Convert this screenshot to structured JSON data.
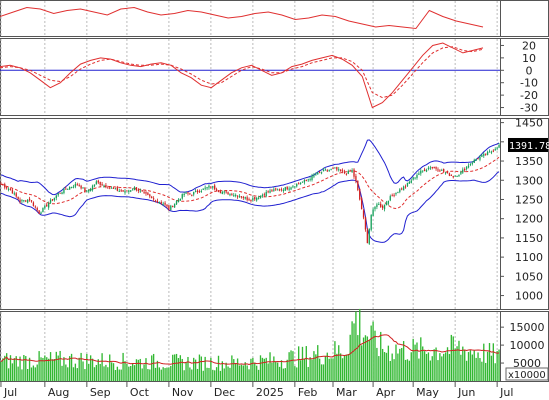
{
  "chart_data": {
    "type": "candlestick",
    "x_axis": {
      "month_labels": [
        "Jul",
        "Aug",
        "Sep",
        "Oct",
        "Nov",
        "Dec",
        "2025",
        "Feb",
        "Mar",
        "Apr",
        "May",
        "Jun",
        "Jul"
      ],
      "month_positions": [
        0,
        23,
        45,
        66,
        88,
        110,
        132,
        154,
        174,
        195,
        216,
        238,
        260
      ],
      "total_sessions": 262
    },
    "panels": [
      {
        "id": "oscillator_top",
        "series": [
          {
            "style": "line",
            "color": "#e03030",
            "values": [
              0.55,
              0.7,
              0.85,
              0.8,
              0.65,
              0.75,
              0.8,
              0.7,
              0.6,
              0.8,
              0.85,
              0.7,
              0.6,
              0.65,
              0.75,
              0.7,
              0.6,
              0.5,
              0.55,
              0.65,
              0.7,
              0.6,
              0.45,
              0.5,
              0.6,
              0.55,
              0.4,
              0.3,
              0.2,
              0.25,
              0.2,
              0.15,
              0.75,
              0.55,
              0.4,
              0.3,
              0.2
            ]
          }
        ]
      },
      {
        "id": "macd",
        "y_ticks": [
          20,
          10,
          0,
          -10,
          -20,
          -30
        ],
        "ylim": [
          -36,
          26
        ],
        "zero_line_color": "#2020d0",
        "series": [
          {
            "name": "macd",
            "style": "line",
            "color": "#e03030",
            "values": [
              3,
              4,
              2,
              -2,
              -8,
              -14,
              -10,
              -2,
              5,
              8,
              10,
              9,
              6,
              4,
              3,
              5,
              6,
              4,
              -2,
              -6,
              -12,
              -14,
              -8,
              -2,
              2,
              4,
              0,
              -4,
              -2,
              3,
              5,
              8,
              10,
              12,
              9,
              4,
              -5,
              -30,
              -26,
              -18,
              -8,
              2,
              12,
              20,
              22,
              18,
              14,
              16,
              18
            ]
          },
          {
            "name": "signal",
            "style": "dashed",
            "color": "#e03030",
            "values": [
              2,
              3,
              2,
              0,
              -4,
              -8,
              -9,
              -5,
              1,
              5,
              8,
              9,
              7,
              5,
              4,
              4,
              5,
              4,
              1,
              -3,
              -8,
              -11,
              -10,
              -5,
              0,
              3,
              1,
              -2,
              -2,
              1,
              3,
              6,
              8,
              10,
              10,
              7,
              0,
              -18,
              -22,
              -20,
              -12,
              -3,
              6,
              14,
              18,
              19,
              16,
              15,
              17
            ]
          }
        ]
      },
      {
        "id": "price",
        "y_ticks": [
          1450,
          1400,
          1350,
          1300,
          1250,
          1200,
          1150,
          1100,
          1050,
          1000
        ],
        "ylim": [
          965,
          1462
        ],
        "last_price_label": "1391.780",
        "last_price": 1391.78,
        "close_keypoints": [
          [
            0,
            1290
          ],
          [
            5,
            1275
          ],
          [
            10,
            1245
          ],
          [
            15,
            1250
          ],
          [
            20,
            1215
          ],
          [
            25,
            1240
          ],
          [
            30,
            1265
          ],
          [
            35,
            1280
          ],
          [
            40,
            1290
          ],
          [
            45,
            1270
          ],
          [
            50,
            1295
          ],
          [
            55,
            1285
          ],
          [
            60,
            1275
          ],
          [
            65,
            1270
          ],
          [
            70,
            1280
          ],
          [
            75,
            1265
          ],
          [
            80,
            1250
          ],
          [
            85,
            1240
          ],
          [
            88,
            1225
          ],
          [
            92,
            1245
          ],
          [
            96,
            1265
          ],
          [
            100,
            1265
          ],
          [
            105,
            1275
          ],
          [
            110,
            1285
          ],
          [
            115,
            1270
          ],
          [
            120,
            1265
          ],
          [
            125,
            1260
          ],
          [
            130,
            1250
          ],
          [
            134,
            1255
          ],
          [
            140,
            1270
          ],
          [
            145,
            1275
          ],
          [
            150,
            1280
          ],
          [
            155,
            1290
          ],
          [
            160,
            1300
          ],
          [
            165,
            1315
          ],
          [
            170,
            1325
          ],
          [
            175,
            1330
          ],
          [
            178,
            1322
          ],
          [
            181,
            1318
          ],
          [
            184,
            1325
          ],
          [
            186,
            1295
          ],
          [
            188,
            1250
          ],
          [
            190,
            1200
          ],
          [
            192,
            1140
          ],
          [
            194,
            1210
          ],
          [
            197,
            1240
          ],
          [
            200,
            1230
          ],
          [
            203,
            1250
          ],
          [
            206,
            1265
          ],
          [
            209,
            1275
          ],
          [
            212,
            1285
          ],
          [
            215,
            1300
          ],
          [
            218,
            1315
          ],
          [
            221,
            1325
          ],
          [
            225,
            1335
          ],
          [
            229,
            1330
          ],
          [
            233,
            1320
          ],
          [
            237,
            1310
          ],
          [
            241,
            1320
          ],
          [
            245,
            1340
          ],
          [
            249,
            1355
          ],
          [
            253,
            1365
          ],
          [
            257,
            1375
          ],
          [
            261,
            1392
          ]
        ],
        "overlays": [
          {
            "name": "bollinger_bands",
            "color": "#2020d0"
          },
          {
            "name": "moving_average",
            "color": "#e03030",
            "style": "dashed"
          }
        ],
        "candle_colors": {
          "up": "#16a05a",
          "down": "#d02020"
        }
      },
      {
        "id": "volume",
        "y_ticks": [
          15000,
          10000,
          5000
        ],
        "ylim": [
          0,
          19500
        ],
        "unit_label": "x10000",
        "bar_color": "#32b832",
        "ma_color": "#d02020",
        "volume_keypoints": [
          [
            0,
            5600
          ],
          [
            20,
            5800
          ],
          [
            40,
            5900
          ],
          [
            60,
            5500
          ],
          [
            80,
            5300
          ],
          [
            100,
            5200
          ],
          [
            120,
            5100
          ],
          [
            140,
            5600
          ],
          [
            160,
            7000
          ],
          [
            180,
            8500
          ],
          [
            186,
            17500
          ],
          [
            190,
            14000
          ],
          [
            200,
            9000
          ],
          [
            220,
            8500
          ],
          [
            240,
            9000
          ],
          [
            261,
            7000
          ]
        ]
      }
    ]
  }
}
